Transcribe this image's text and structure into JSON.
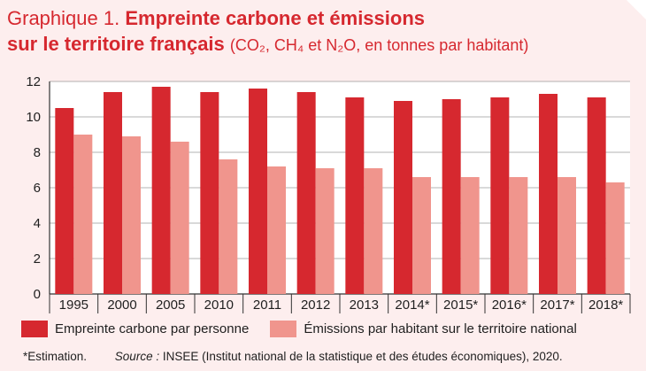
{
  "title": {
    "prefix": "Graphique 1.",
    "main_line1": "Empreinte carbone et émissions",
    "main_line2": "sur le territoire français",
    "subtitle": "(CO₂, CH₄ et N₂O, en tonnes par habitant)"
  },
  "colors": {
    "series1": "#d6282f",
    "series2": "#f0958d",
    "background": "#fdeeee",
    "plot_bg": "#ffffff",
    "title": "#d6282f"
  },
  "chart_data": {
    "type": "bar",
    "categories": [
      "1995",
      "2000",
      "2005",
      "2010",
      "2011",
      "2012",
      "2013",
      "2014*",
      "2015*",
      "2016*",
      "2017*",
      "2018*"
    ],
    "series": [
      {
        "name": "Empreinte carbone par personne",
        "values": [
          10.5,
          11.4,
          11.7,
          11.4,
          11.6,
          11.4,
          11.1,
          10.9,
          11.0,
          11.1,
          11.3,
          11.1
        ]
      },
      {
        "name": "Émissions par habitant sur le territoire national",
        "values": [
          9.0,
          8.9,
          8.6,
          7.6,
          7.2,
          7.1,
          7.1,
          6.6,
          6.6,
          6.6,
          6.6,
          6.3
        ]
      }
    ],
    "yticks": [
      0,
      2,
      4,
      6,
      8,
      10,
      12
    ],
    "ylim": [
      0,
      12
    ],
    "grid": true,
    "legend_placement": "bottom"
  },
  "footer": {
    "note": "*Estimation.",
    "source_label": "Source :",
    "source_text": "INSEE (Institut national de la statistique et des études économiques), 2020."
  }
}
